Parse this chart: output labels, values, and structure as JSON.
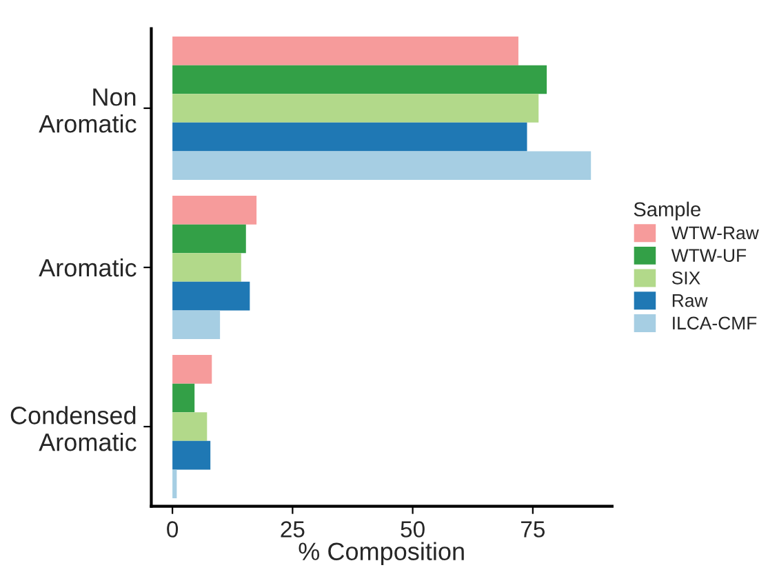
{
  "chart_data": {
    "type": "bar",
    "orientation": "horizontal",
    "xlabel": "% Composition",
    "legend_title": "Sample",
    "legend": "right",
    "categories": [
      "Non\nAromatic",
      "Aromatic",
      "Condensed\nAromatic"
    ],
    "series": [
      {
        "name": "WTW-Raw",
        "color": "#f69b9b",
        "values": [
          72.0,
          17.5,
          8.2
        ]
      },
      {
        "name": "WTW-UF",
        "color": "#33a047",
        "values": [
          77.9,
          15.3,
          4.6
        ]
      },
      {
        "name": "SIX",
        "color": "#b2d98a",
        "values": [
          76.2,
          14.3,
          7.2
        ]
      },
      {
        "name": "Raw",
        "color": "#1f78b4",
        "values": [
          73.8,
          16.1,
          7.9
        ]
      },
      {
        "name": "ILCA-CMF",
        "color": "#a6cee3",
        "values": [
          87.1,
          9.9,
          0.9
        ]
      }
    ],
    "xlim": [
      -4.4,
      91.5
    ],
    "xticks": [
      0,
      25,
      50,
      75
    ],
    "grid": false
  }
}
